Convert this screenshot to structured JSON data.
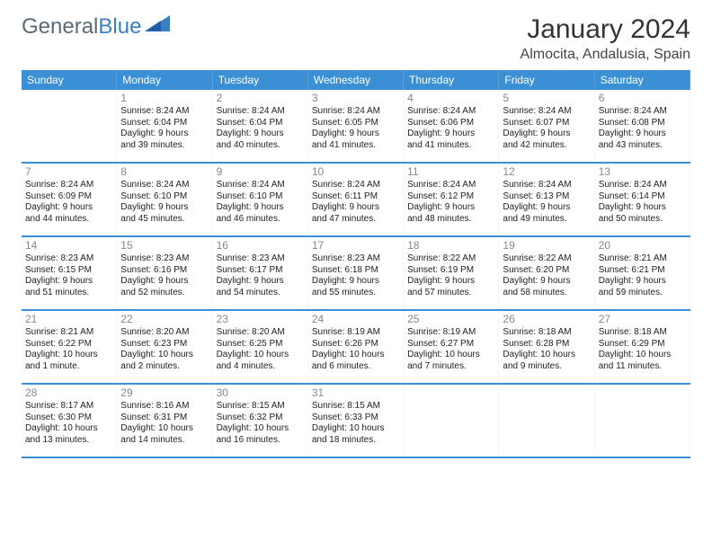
{
  "logo": {
    "text_general": "General",
    "text_blue": "Blue"
  },
  "title": "January 2024",
  "location": "Almocita, Andalusia, Spain",
  "colors": {
    "header_bg": "#3b8fd4",
    "header_text": "#ffffff",
    "week_divider": "#3b8fd4",
    "day_num": "#888888",
    "body_text": "#222222",
    "page_bg": "#ffffff",
    "logo_gray": "#5a6b78",
    "logo_blue": "#3b7fc4"
  },
  "weekdays": [
    "Sunday",
    "Monday",
    "Tuesday",
    "Wednesday",
    "Thursday",
    "Friday",
    "Saturday"
  ],
  "weeks": [
    [
      null,
      {
        "num": "1",
        "sunrise": "Sunrise: 8:24 AM",
        "sunset": "Sunset: 6:04 PM",
        "daylight1": "Daylight: 9 hours",
        "daylight2": "and 39 minutes."
      },
      {
        "num": "2",
        "sunrise": "Sunrise: 8:24 AM",
        "sunset": "Sunset: 6:04 PM",
        "daylight1": "Daylight: 9 hours",
        "daylight2": "and 40 minutes."
      },
      {
        "num": "3",
        "sunrise": "Sunrise: 8:24 AM",
        "sunset": "Sunset: 6:05 PM",
        "daylight1": "Daylight: 9 hours",
        "daylight2": "and 41 minutes."
      },
      {
        "num": "4",
        "sunrise": "Sunrise: 8:24 AM",
        "sunset": "Sunset: 6:06 PM",
        "daylight1": "Daylight: 9 hours",
        "daylight2": "and 41 minutes."
      },
      {
        "num": "5",
        "sunrise": "Sunrise: 8:24 AM",
        "sunset": "Sunset: 6:07 PM",
        "daylight1": "Daylight: 9 hours",
        "daylight2": "and 42 minutes."
      },
      {
        "num": "6",
        "sunrise": "Sunrise: 8:24 AM",
        "sunset": "Sunset: 6:08 PM",
        "daylight1": "Daylight: 9 hours",
        "daylight2": "and 43 minutes."
      }
    ],
    [
      {
        "num": "7",
        "sunrise": "Sunrise: 8:24 AM",
        "sunset": "Sunset: 6:09 PM",
        "daylight1": "Daylight: 9 hours",
        "daylight2": "and 44 minutes."
      },
      {
        "num": "8",
        "sunrise": "Sunrise: 8:24 AM",
        "sunset": "Sunset: 6:10 PM",
        "daylight1": "Daylight: 9 hours",
        "daylight2": "and 45 minutes."
      },
      {
        "num": "9",
        "sunrise": "Sunrise: 8:24 AM",
        "sunset": "Sunset: 6:10 PM",
        "daylight1": "Daylight: 9 hours",
        "daylight2": "and 46 minutes."
      },
      {
        "num": "10",
        "sunrise": "Sunrise: 8:24 AM",
        "sunset": "Sunset: 6:11 PM",
        "daylight1": "Daylight: 9 hours",
        "daylight2": "and 47 minutes."
      },
      {
        "num": "11",
        "sunrise": "Sunrise: 8:24 AM",
        "sunset": "Sunset: 6:12 PM",
        "daylight1": "Daylight: 9 hours",
        "daylight2": "and 48 minutes."
      },
      {
        "num": "12",
        "sunrise": "Sunrise: 8:24 AM",
        "sunset": "Sunset: 6:13 PM",
        "daylight1": "Daylight: 9 hours",
        "daylight2": "and 49 minutes."
      },
      {
        "num": "13",
        "sunrise": "Sunrise: 8:24 AM",
        "sunset": "Sunset: 6:14 PM",
        "daylight1": "Daylight: 9 hours",
        "daylight2": "and 50 minutes."
      }
    ],
    [
      {
        "num": "14",
        "sunrise": "Sunrise: 8:23 AM",
        "sunset": "Sunset: 6:15 PM",
        "daylight1": "Daylight: 9 hours",
        "daylight2": "and 51 minutes."
      },
      {
        "num": "15",
        "sunrise": "Sunrise: 8:23 AM",
        "sunset": "Sunset: 6:16 PM",
        "daylight1": "Daylight: 9 hours",
        "daylight2": "and 52 minutes."
      },
      {
        "num": "16",
        "sunrise": "Sunrise: 8:23 AM",
        "sunset": "Sunset: 6:17 PM",
        "daylight1": "Daylight: 9 hours",
        "daylight2": "and 54 minutes."
      },
      {
        "num": "17",
        "sunrise": "Sunrise: 8:23 AM",
        "sunset": "Sunset: 6:18 PM",
        "daylight1": "Daylight: 9 hours",
        "daylight2": "and 55 minutes."
      },
      {
        "num": "18",
        "sunrise": "Sunrise: 8:22 AM",
        "sunset": "Sunset: 6:19 PM",
        "daylight1": "Daylight: 9 hours",
        "daylight2": "and 57 minutes."
      },
      {
        "num": "19",
        "sunrise": "Sunrise: 8:22 AM",
        "sunset": "Sunset: 6:20 PM",
        "daylight1": "Daylight: 9 hours",
        "daylight2": "and 58 minutes."
      },
      {
        "num": "20",
        "sunrise": "Sunrise: 8:21 AM",
        "sunset": "Sunset: 6:21 PM",
        "daylight1": "Daylight: 9 hours",
        "daylight2": "and 59 minutes."
      }
    ],
    [
      {
        "num": "21",
        "sunrise": "Sunrise: 8:21 AM",
        "sunset": "Sunset: 6:22 PM",
        "daylight1": "Daylight: 10 hours",
        "daylight2": "and 1 minute."
      },
      {
        "num": "22",
        "sunrise": "Sunrise: 8:20 AM",
        "sunset": "Sunset: 6:23 PM",
        "daylight1": "Daylight: 10 hours",
        "daylight2": "and 2 minutes."
      },
      {
        "num": "23",
        "sunrise": "Sunrise: 8:20 AM",
        "sunset": "Sunset: 6:25 PM",
        "daylight1": "Daylight: 10 hours",
        "daylight2": "and 4 minutes."
      },
      {
        "num": "24",
        "sunrise": "Sunrise: 8:19 AM",
        "sunset": "Sunset: 6:26 PM",
        "daylight1": "Daylight: 10 hours",
        "daylight2": "and 6 minutes."
      },
      {
        "num": "25",
        "sunrise": "Sunrise: 8:19 AM",
        "sunset": "Sunset: 6:27 PM",
        "daylight1": "Daylight: 10 hours",
        "daylight2": "and 7 minutes."
      },
      {
        "num": "26",
        "sunrise": "Sunrise: 8:18 AM",
        "sunset": "Sunset: 6:28 PM",
        "daylight1": "Daylight: 10 hours",
        "daylight2": "and 9 minutes."
      },
      {
        "num": "27",
        "sunrise": "Sunrise: 8:18 AM",
        "sunset": "Sunset: 6:29 PM",
        "daylight1": "Daylight: 10 hours",
        "daylight2": "and 11 minutes."
      }
    ],
    [
      {
        "num": "28",
        "sunrise": "Sunrise: 8:17 AM",
        "sunset": "Sunset: 6:30 PM",
        "daylight1": "Daylight: 10 hours",
        "daylight2": "and 13 minutes."
      },
      {
        "num": "29",
        "sunrise": "Sunrise: 8:16 AM",
        "sunset": "Sunset: 6:31 PM",
        "daylight1": "Daylight: 10 hours",
        "daylight2": "and 14 minutes."
      },
      {
        "num": "30",
        "sunrise": "Sunrise: 8:15 AM",
        "sunset": "Sunset: 6:32 PM",
        "daylight1": "Daylight: 10 hours",
        "daylight2": "and 16 minutes."
      },
      {
        "num": "31",
        "sunrise": "Sunrise: 8:15 AM",
        "sunset": "Sunset: 6:33 PM",
        "daylight1": "Daylight: 10 hours",
        "daylight2": "and 18 minutes."
      },
      null,
      null,
      null
    ]
  ]
}
